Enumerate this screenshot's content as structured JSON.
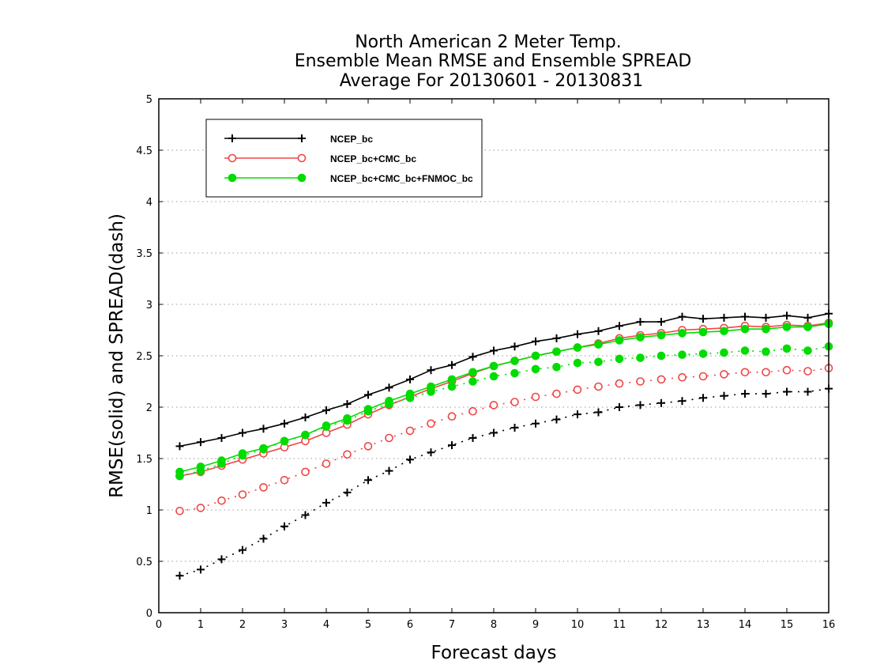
{
  "chart_data": {
    "type": "line",
    "title_lines": [
      "North American 2 Meter Temp.",
      "Ensemble Mean RMSE and Ensemble SPREAD",
      "Average For 20130601 - 20130831"
    ],
    "xlabel": "Forecast days",
    "ylabel": "RMSE(solid) and SPREAD(dash)",
    "xlim": [
      0,
      16
    ],
    "ylim": [
      0,
      5
    ],
    "xticks": [
      "0",
      "1",
      "2",
      "3",
      "4",
      "5",
      "6",
      "7",
      "8",
      "9",
      "10",
      "11",
      "12",
      "13",
      "14",
      "15",
      "16"
    ],
    "yticks": [
      "0",
      "0.5",
      "1",
      "1.5",
      "2",
      "2.5",
      "3",
      "3.5",
      "4",
      "4.5",
      "5"
    ],
    "grid": "dotted horizontal",
    "legend_position": "top-left",
    "x": [
      0.5,
      1,
      1.5,
      2,
      2.5,
      3,
      3.5,
      4,
      4.5,
      5,
      5.5,
      6,
      6.5,
      7,
      7.5,
      8,
      8.5,
      9,
      9.5,
      10,
      10.5,
      11,
      11.5,
      12,
      12.5,
      13,
      13.5,
      14,
      14.5,
      15,
      15.5,
      16
    ],
    "series": [
      {
        "name": "NCEP_bc",
        "color": "#000000",
        "marker": "plus",
        "rmse": [
          1.62,
          1.66,
          1.7,
          1.75,
          1.79,
          1.84,
          1.9,
          1.97,
          2.03,
          2.12,
          2.19,
          2.27,
          2.36,
          2.41,
          2.49,
          2.55,
          2.59,
          2.64,
          2.67,
          2.71,
          2.74,
          2.79,
          2.83,
          2.83,
          2.88,
          2.86,
          2.87,
          2.88,
          2.87,
          2.89,
          2.87,
          2.91
        ],
        "spread": [
          0.36,
          0.42,
          0.52,
          0.61,
          0.72,
          0.84,
          0.95,
          1.07,
          1.17,
          1.29,
          1.38,
          1.49,
          1.56,
          1.63,
          1.7,
          1.75,
          1.8,
          1.84,
          1.88,
          1.93,
          1.95,
          2.0,
          2.02,
          2.04,
          2.06,
          2.09,
          2.11,
          2.13,
          2.13,
          2.15,
          2.15,
          2.18
        ]
      },
      {
        "name": "NCEP_bc+CMC_bc",
        "color": "#f04646",
        "marker": "open-circle",
        "rmse": [
          1.33,
          1.37,
          1.43,
          1.49,
          1.55,
          1.61,
          1.67,
          1.75,
          1.83,
          1.93,
          2.02,
          2.1,
          2.18,
          2.25,
          2.33,
          2.4,
          2.45,
          2.5,
          2.54,
          2.58,
          2.62,
          2.67,
          2.7,
          2.72,
          2.75,
          2.76,
          2.77,
          2.79,
          2.78,
          2.8,
          2.79,
          2.82
        ],
        "spread": [
          0.99,
          1.02,
          1.09,
          1.15,
          1.22,
          1.29,
          1.37,
          1.45,
          1.54,
          1.62,
          1.7,
          1.77,
          1.84,
          1.91,
          1.96,
          2.02,
          2.05,
          2.1,
          2.13,
          2.17,
          2.2,
          2.23,
          2.25,
          2.27,
          2.29,
          2.3,
          2.32,
          2.34,
          2.34,
          2.36,
          2.35,
          2.38
        ]
      },
      {
        "name": "NCEP_bc+CMC_bc+FNMOC_bc",
        "color": "#00dc00",
        "marker": "filled-circle",
        "rmse": [
          1.37,
          1.42,
          1.48,
          1.55,
          1.6,
          1.67,
          1.73,
          1.82,
          1.89,
          1.98,
          2.06,
          2.13,
          2.2,
          2.27,
          2.34,
          2.4,
          2.45,
          2.5,
          2.54,
          2.58,
          2.61,
          2.65,
          2.68,
          2.7,
          2.72,
          2.73,
          2.74,
          2.76,
          2.76,
          2.78,
          2.78,
          2.81
        ],
        "spread": [
          1.33,
          1.38,
          1.45,
          1.53,
          1.59,
          1.67,
          1.73,
          1.81,
          1.87,
          1.96,
          2.03,
          2.09,
          2.15,
          2.2,
          2.25,
          2.3,
          2.33,
          2.37,
          2.39,
          2.43,
          2.44,
          2.47,
          2.48,
          2.5,
          2.51,
          2.52,
          2.53,
          2.55,
          2.54,
          2.57,
          2.55,
          2.59
        ]
      }
    ]
  }
}
